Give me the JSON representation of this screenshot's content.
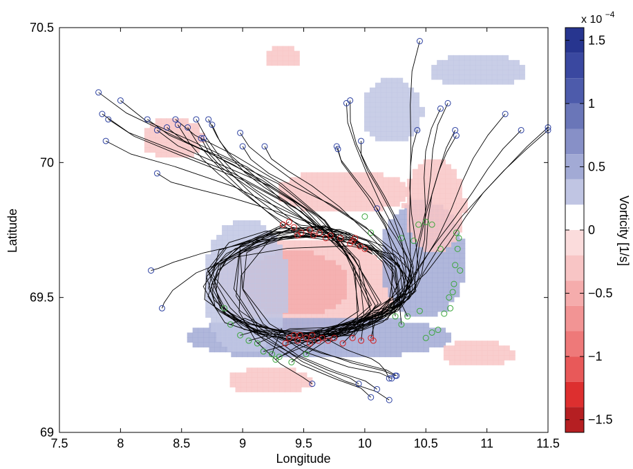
{
  "chart_data": {
    "type": "heatmap",
    "title": "",
    "xlabel": "Longitude",
    "ylabel": "Latitude",
    "xlim": [
      7.5,
      11.5
    ],
    "ylim": [
      69.0,
      70.5
    ],
    "xticks": [
      7.5,
      8,
      8.5,
      9,
      9.5,
      10,
      10.5,
      11,
      11.5
    ],
    "xtick_labels": [
      "7.5",
      "8",
      "8.5",
      "9",
      "9.5",
      "10",
      "10.5",
      "11",
      "11.5"
    ],
    "yticks": [
      69,
      69.5,
      70,
      70.5
    ],
    "ytick_labels": [
      "69",
      "69.5",
      "70",
      "70.5"
    ],
    "grid": false,
    "colorbar": {
      "label": "Vorticity [1/s]",
      "exponent_label": "x 10",
      "exponent_power": "−4",
      "range": [
        -1.6,
        1.6
      ],
      "ticks": [
        -1.5,
        -1,
        -0.5,
        0,
        0.5,
        1,
        1.5
      ],
      "tick_labels": [
        "−1.5",
        "−1",
        "−0.5",
        "0",
        "0.5",
        "1",
        "1.5"
      ],
      "levels": [
        {
          "from": 1.4,
          "to": 1.6,
          "color": "#27358f"
        },
        {
          "from": 1.2,
          "to": 1.4,
          "color": "#3a48a0"
        },
        {
          "from": 1.0,
          "to": 1.2,
          "color": "#4d5bab"
        },
        {
          "from": 0.8,
          "to": 1.0,
          "color": "#6a76b8"
        },
        {
          "from": 0.6,
          "to": 0.8,
          "color": "#8790c7"
        },
        {
          "from": 0.4,
          "to": 0.6,
          "color": "#a2aad5"
        },
        {
          "from": 0.2,
          "to": 0.4,
          "color": "#c0c5e3"
        },
        {
          "from": 0.0,
          "to": 0.2,
          "color": "#ffffff"
        },
        {
          "from": -0.2,
          "to": 0.0,
          "color": "#fbdcdc"
        },
        {
          "from": -0.4,
          "to": -0.2,
          "color": "#f8c5c5"
        },
        {
          "from": -0.6,
          "to": -0.4,
          "color": "#f5acac"
        },
        {
          "from": -0.8,
          "to": -0.6,
          "color": "#f29494"
        },
        {
          "from": -1.0,
          "to": -0.8,
          "color": "#ee7979"
        },
        {
          "from": -1.2,
          "to": -1.0,
          "color": "#e85959"
        },
        {
          "from": -1.4,
          "to": -1.2,
          "color": "#dd2f2f"
        },
        {
          "from": -1.6,
          "to": -1.4,
          "color": "#b51f22"
        }
      ]
    },
    "vorticity_field": {
      "description_of_pattern": "anticyclonic eddy core (negative vorticity) surrounded by a positive vorticity ring",
      "cells": [
        {
          "lon": 9.5,
          "lat": 69.55,
          "value": -0.3,
          "rx": 0.75,
          "ry": 0.18
        },
        {
          "lon": 9.4,
          "lat": 69.56,
          "value": -0.5,
          "rx": 0.45,
          "ry": 0.12
        },
        {
          "lon": 9.8,
          "lat": 69.9,
          "value": -0.4,
          "rx": 0.55,
          "ry": 0.08
        },
        {
          "lon": 9.6,
          "lat": 69.36,
          "value": 0.4,
          "rx": 1.1,
          "ry": 0.08
        },
        {
          "lon": 9.0,
          "lat": 69.55,
          "value": 0.3,
          "rx": 0.35,
          "ry": 0.25
        },
        {
          "lon": 10.45,
          "lat": 69.65,
          "value": 0.4,
          "rx": 0.35,
          "ry": 0.22
        },
        {
          "lon": 10.55,
          "lat": 69.85,
          "value": -0.3,
          "rx": 0.25,
          "ry": 0.18
        },
        {
          "lon": 10.2,
          "lat": 70.2,
          "value": 0.3,
          "rx": 0.25,
          "ry": 0.12
        },
        {
          "lon": 8.4,
          "lat": 70.1,
          "value": -0.3,
          "rx": 0.25,
          "ry": 0.08
        },
        {
          "lon": 10.9,
          "lat": 70.35,
          "value": 0.3,
          "rx": 0.4,
          "ry": 0.06
        },
        {
          "lon": 9.2,
          "lat": 69.2,
          "value": -0.3,
          "rx": 0.35,
          "ry": 0.05
        },
        {
          "lon": 9.3,
          "lat": 70.4,
          "value": -0.3,
          "rx": 0.15,
          "ry": 0.04
        },
        {
          "lon": 10.9,
          "lat": 69.3,
          "value": -0.3,
          "rx": 0.3,
          "ry": 0.05
        }
      ]
    },
    "series": [
      {
        "marker": "start",
        "marker_color": "#2a3fa0",
        "points": [
          [
            7.82,
            70.26
          ],
          [
            7.85,
            70.18
          ],
          [
            7.88,
            70.08
          ],
          [
            7.9,
            70.16
          ],
          [
            8.0,
            70.23
          ],
          [
            8.22,
            70.16
          ],
          [
            8.3,
            70.12
          ],
          [
            8.38,
            70.13
          ],
          [
            8.45,
            70.16
          ],
          [
            8.47,
            70.14
          ],
          [
            8.55,
            70.13
          ],
          [
            8.62,
            70.16
          ],
          [
            8.66,
            70.09
          ],
          [
            8.68,
            70.09
          ],
          [
            8.72,
            70.16
          ],
          [
            8.75,
            70.14
          ],
          [
            8.98,
            70.11
          ],
          [
            9.0,
            70.06
          ],
          [
            9.18,
            70.06
          ],
          [
            9.85,
            70.22
          ],
          [
            9.88,
            70.23
          ],
          [
            9.97,
            70.08
          ],
          [
            10.45,
            70.45
          ],
          [
            10.43,
            70.12
          ],
          [
            10.62,
            70.2
          ],
          [
            10.68,
            70.22
          ],
          [
            10.74,
            70.12
          ],
          [
            10.75,
            70.1
          ],
          [
            11.15,
            70.18
          ],
          [
            11.28,
            70.12
          ],
          [
            11.5,
            70.13
          ],
          [
            11.5,
            70.12
          ],
          [
            8.3,
            69.96
          ],
          [
            9.77,
            70.06
          ],
          [
            9.78,
            70.05
          ],
          [
            10.1,
            69.83
          ],
          [
            8.25,
            69.6
          ],
          [
            8.34,
            69.46
          ],
          [
            9.57,
            69.18
          ],
          [
            10.2,
            69.2
          ],
          [
            10.22,
            69.2
          ],
          [
            10.25,
            69.21
          ],
          [
            10.1,
            69.16
          ],
          [
            10.2,
            69.12
          ],
          [
            10.26,
            69.21
          ],
          [
            10.05,
            69.13
          ],
          [
            9.95,
            69.18
          ]
        ]
      },
      {
        "marker": "end",
        "marker_color": "#d42020",
        "points": [
          [
            9.33,
            69.77
          ],
          [
            9.38,
            69.78
          ],
          [
            9.42,
            69.76
          ],
          [
            9.45,
            69.73
          ],
          [
            9.48,
            69.74
          ],
          [
            9.55,
            69.75
          ],
          [
            9.58,
            69.73
          ],
          [
            9.63,
            69.74
          ],
          [
            9.68,
            69.72
          ],
          [
            9.72,
            69.73
          ],
          [
            9.8,
            69.72
          ],
          [
            9.88,
            69.7
          ],
          [
            9.9,
            69.71
          ],
          [
            9.92,
            69.72
          ],
          [
            9.96,
            69.69
          ],
          [
            10.0,
            69.68
          ],
          [
            9.38,
            69.35
          ],
          [
            9.42,
            69.36
          ],
          [
            9.45,
            69.34
          ],
          [
            9.47,
            69.36
          ],
          [
            9.52,
            69.35
          ],
          [
            9.55,
            69.33
          ],
          [
            9.57,
            69.36
          ],
          [
            9.62,
            69.34
          ],
          [
            9.65,
            69.35
          ],
          [
            9.7,
            69.34
          ],
          [
            9.75,
            69.35
          ],
          [
            9.82,
            69.33
          ],
          [
            9.9,
            69.35
          ],
          [
            9.97,
            69.34
          ],
          [
            10.05,
            69.35
          ],
          [
            10.07,
            69.34
          ],
          [
            9.35,
            69.33
          ]
        ]
      },
      {
        "marker": "end",
        "marker_color": "#3aa63a",
        "points": [
          [
            8.85,
            69.46
          ],
          [
            8.9,
            69.4
          ],
          [
            8.98,
            69.36
          ],
          [
            9.05,
            69.34
          ],
          [
            9.12,
            69.33
          ],
          [
            9.17,
            69.3
          ],
          [
            9.24,
            69.29
          ],
          [
            9.27,
            69.27
          ],
          [
            9.3,
            69.28
          ],
          [
            9.4,
            69.26
          ],
          [
            9.52,
            69.29
          ],
          [
            10.25,
            69.43
          ],
          [
            10.3,
            69.4
          ],
          [
            10.35,
            69.43
          ],
          [
            10.45,
            69.45
          ],
          [
            10.5,
            69.35
          ],
          [
            10.55,
            69.37
          ],
          [
            10.6,
            69.38
          ],
          [
            10.65,
            69.44
          ],
          [
            10.7,
            69.46
          ],
          [
            10.73,
            69.55
          ],
          [
            10.74,
            69.62
          ],
          [
            10.76,
            69.68
          ],
          [
            10.77,
            69.72
          ],
          [
            10.78,
            69.6
          ],
          [
            10.75,
            69.74
          ],
          [
            10.62,
            69.68
          ],
          [
            10.5,
            69.78
          ],
          [
            10.55,
            69.77
          ],
          [
            10.44,
            69.77
          ],
          [
            10.3,
            69.72
          ],
          [
            10.4,
            69.71
          ],
          [
            10.0,
            69.8
          ],
          [
            10.05,
            69.74
          ],
          [
            10.72,
            69.52
          ],
          [
            10.69,
            69.5
          ]
        ]
      }
    ]
  }
}
